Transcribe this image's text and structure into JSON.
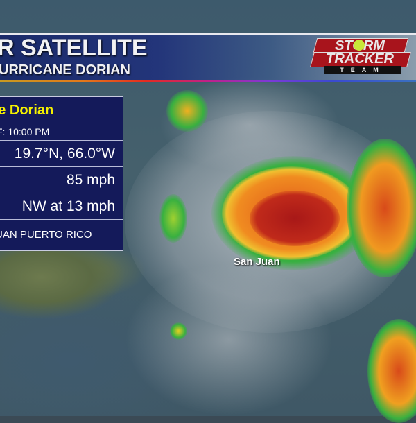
{
  "header": {
    "title": "R SATELLITE",
    "subtitle": "URRICANE DORIAN"
  },
  "logo": {
    "line1": "STORM",
    "line2": "TRACKER",
    "line3": "TEAM"
  },
  "panel": {
    "storm_name": "ne Dorian",
    "time": "F: 10:00 PM",
    "location": "19.7°N, 66.0°W",
    "max_wind": "85 mph",
    "movement": "NW at 13 mph",
    "place": "UAN PUERTO RICO"
  },
  "map": {
    "city_label": "San Juan"
  },
  "colors": {
    "panel_bg": "#141a5a",
    "storm_name": "#f4f000",
    "header_bg": "#1a2a6a",
    "logo_red": "#a8141c"
  }
}
